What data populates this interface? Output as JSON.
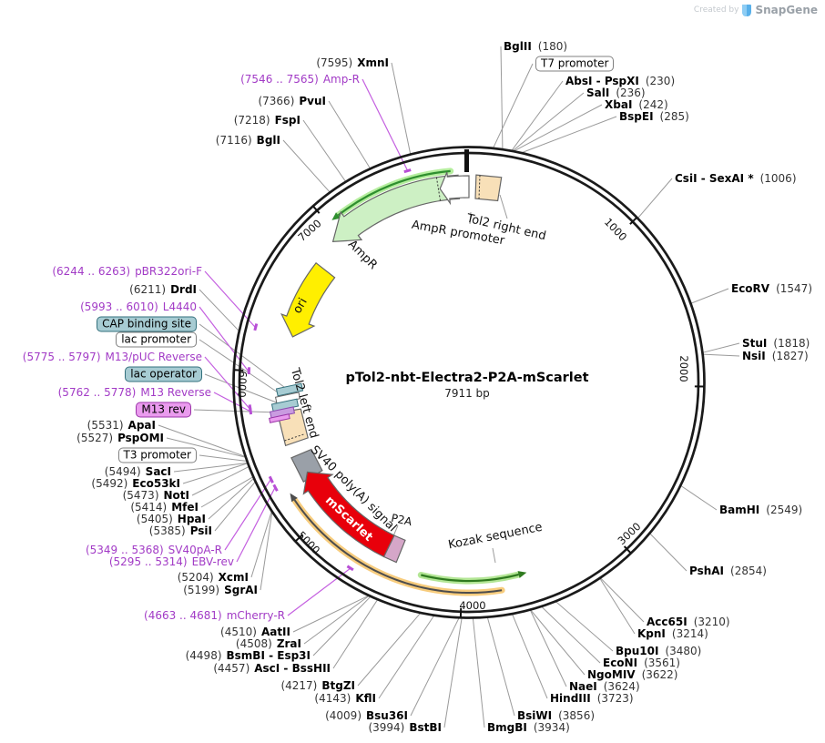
{
  "watermark": {
    "prefix": "Created by",
    "brand": "SnapGene"
  },
  "plasmid": {
    "name": "pTol2-nbt-Electra2-P2A-mScarlet",
    "length": "7911 bp"
  },
  "position_ticks": [
    "1000",
    "2000",
    "3000",
    "4000",
    "5000",
    "6000",
    "7000"
  ],
  "features": {
    "ampr": "AmpR",
    "ampr_promoter": "AmpR promoter",
    "tol2_right": "Tol2 right end",
    "ori": "ori",
    "tol2_left": "Tol2 left end",
    "sv40": "SV40 poly(A) signal",
    "mscarlet": "mScarlet",
    "p2a": "P2A",
    "kozak": "Kozak sequence"
  },
  "colors": {
    "primer_text": "#a23bc6",
    "primer_line": "#c45fe0",
    "ampr_fill": "#cdf0c4",
    "ori_fill": "#ffef00",
    "tol2_fill": "#f8e0b8",
    "sv40_fill": "#9aa0a8",
    "mscarlet_fill": "#e8000b",
    "p2a_fill": "#d5a6c8",
    "orf_green": "#2f7a1f",
    "orf_orange_glow": "#f6c76f",
    "teal_box": "#a7ccd3",
    "m13rev_box": "#ea9bee"
  },
  "callouts": [
    {
      "pre": "(7595)",
      "name": "XmnI",
      "kind": "enzyme"
    },
    {
      "pre": "(7546 .. 7565)",
      "name": "Amp-R",
      "kind": "primer"
    },
    {
      "pre": "(7366)",
      "name": "PvuI",
      "kind": "enzyme"
    },
    {
      "pre": "(7218)",
      "name": "FspI",
      "kind": "enzyme"
    },
    {
      "pre": "(7116)",
      "name": "BglI",
      "kind": "enzyme"
    },
    {
      "name": "BglII",
      "post": "(180)",
      "kind": "enzyme"
    },
    {
      "name": "T7 promoter",
      "kind": "box-white"
    },
    {
      "name": "AbsI - PspXI",
      "post": "(230)",
      "kind": "enzyme"
    },
    {
      "name": "SalI",
      "post": "(236)",
      "kind": "enzyme"
    },
    {
      "name": "XbaI",
      "post": "(242)",
      "kind": "enzyme"
    },
    {
      "name": "BspEI",
      "post": "(285)",
      "kind": "enzyme"
    },
    {
      "name": "CsiI - SexAI *",
      "post": "(1006)",
      "kind": "enzyme"
    },
    {
      "name": "EcoRV",
      "post": "(1547)",
      "kind": "enzyme"
    },
    {
      "name": "StuI",
      "post": "(1818)",
      "kind": "enzyme"
    },
    {
      "name": "NsiI",
      "post": "(1827)",
      "kind": "enzyme"
    },
    {
      "name": "BamHI",
      "post": "(2549)",
      "kind": "enzyme"
    },
    {
      "name": "PshAI",
      "post": "(2854)",
      "kind": "enzyme"
    },
    {
      "name": "Acc65I",
      "post": "(3210)",
      "kind": "enzyme"
    },
    {
      "name": "KpnI",
      "post": "(3214)",
      "kind": "enzyme"
    },
    {
      "name": "Bpu10I",
      "post": "(3480)",
      "kind": "enzyme"
    },
    {
      "name": "EcoNI",
      "post": "(3561)",
      "kind": "enzyme"
    },
    {
      "name": "NgoMIV",
      "post": "(3622)",
      "kind": "enzyme"
    },
    {
      "name": "NaeI",
      "post": "(3624)",
      "kind": "enzyme"
    },
    {
      "name": "HindIII",
      "post": "(3723)",
      "kind": "enzyme"
    },
    {
      "name": "BsiWI",
      "post": "(3856)",
      "kind": "enzyme"
    },
    {
      "name": "BmgBI",
      "post": "(3934)",
      "kind": "enzyme"
    },
    {
      "pre": "(3994)",
      "name": "BstBI",
      "kind": "enzyme"
    },
    {
      "pre": "(4009)",
      "name": "Bsu36I",
      "kind": "enzyme"
    },
    {
      "pre": "(4143)",
      "name": "KflI",
      "kind": "enzyme"
    },
    {
      "pre": "(4217)",
      "name": "BtgZI",
      "kind": "enzyme"
    },
    {
      "pre": "(4457)",
      "name": "AscI - BssHII",
      "kind": "enzyme"
    },
    {
      "pre": "(4498)",
      "name": "BsmBI - Esp3I",
      "kind": "enzyme"
    },
    {
      "pre": "(4508)",
      "name": "ZraI",
      "kind": "enzyme"
    },
    {
      "pre": "(4510)",
      "name": "AatII",
      "kind": "enzyme"
    },
    {
      "pre": "(4663 .. 4681)",
      "name": "mCherry-R",
      "kind": "primer"
    },
    {
      "pre": "(5199)",
      "name": "SgrAI",
      "kind": "enzyme"
    },
    {
      "pre": "(5204)",
      "name": "XcmI",
      "kind": "enzyme"
    },
    {
      "pre": "(5295 .. 5314)",
      "name": "EBV-rev",
      "kind": "primer"
    },
    {
      "pre": "(5349 .. 5368)",
      "name": "SV40pA-R",
      "kind": "primer"
    },
    {
      "pre": "(5385)",
      "name": "PsiI",
      "kind": "enzyme"
    },
    {
      "pre": "(5405)",
      "name": "HpaI",
      "kind": "enzyme"
    },
    {
      "pre": "(5414)",
      "name": "MfeI",
      "kind": "enzyme"
    },
    {
      "pre": "(5473)",
      "name": "NotI",
      "kind": "enzyme"
    },
    {
      "pre": "(5492)",
      "name": "Eco53kI",
      "kind": "enzyme"
    },
    {
      "pre": "(5494)",
      "name": "SacI",
      "kind": "enzyme"
    },
    {
      "name": "T3 promoter",
      "kind": "box-white"
    },
    {
      "pre": "(5527)",
      "name": "PspOMI",
      "kind": "enzyme"
    },
    {
      "pre": "(5531)",
      "name": "ApaI",
      "kind": "enzyme"
    },
    {
      "name": "M13 rev",
      "kind": "box-purple"
    },
    {
      "pre": "(5762 .. 5778)",
      "name": "M13 Reverse",
      "kind": "primer"
    },
    {
      "name": "lac operator",
      "kind": "box-teal"
    },
    {
      "pre": "(5775 .. 5797)",
      "name": "M13/pUC Reverse",
      "kind": "primer"
    },
    {
      "name": "lac promoter",
      "kind": "box-white"
    },
    {
      "name": "CAP binding site",
      "kind": "box-teal"
    },
    {
      "pre": "(5993 .. 6010)",
      "name": "L4440",
      "kind": "primer"
    },
    {
      "pre": "(6211)",
      "name": "DrdI",
      "kind": "enzyme"
    },
    {
      "pre": "(6244 .. 6263)",
      "name": "pBR322ori-F",
      "kind": "primer"
    }
  ]
}
